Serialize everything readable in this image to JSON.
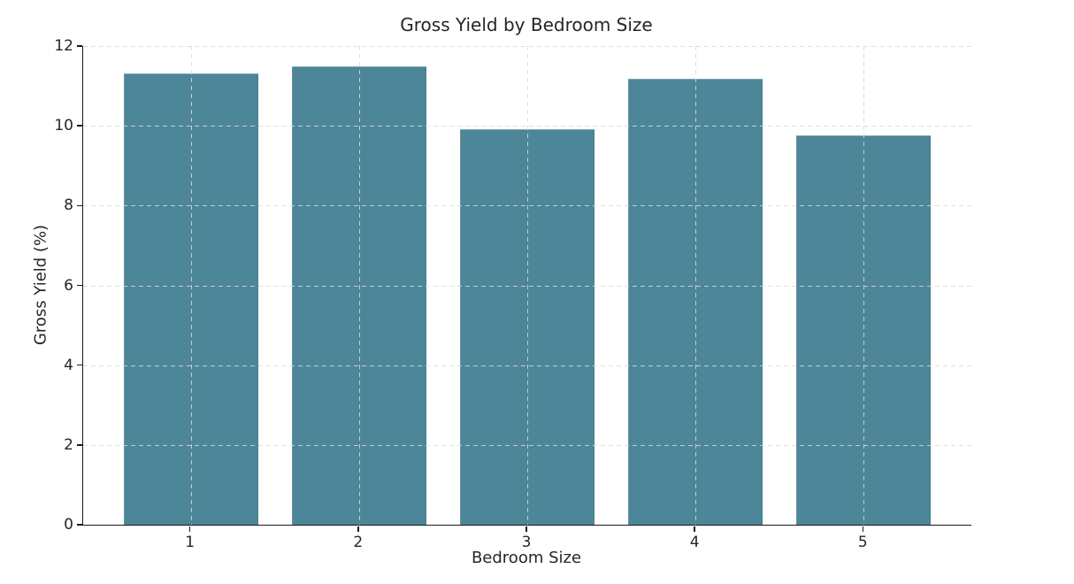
{
  "chart_data": {
    "type": "bar",
    "title": "Gross Yield by Bedroom Size",
    "xlabel": "Bedroom Size",
    "ylabel": "Gross Yield (%)",
    "categories": [
      "1",
      "2",
      "3",
      "4",
      "5"
    ],
    "values": [
      11.32,
      11.5,
      9.92,
      11.18,
      9.75
    ],
    "x_positions": [
      1,
      2,
      3,
      4,
      5
    ],
    "xlim": [
      0.36,
      5.64
    ],
    "ylim": [
      0,
      12
    ],
    "yticks": [
      0,
      2,
      4,
      6,
      8,
      10,
      12
    ],
    "bar_width": 0.8,
    "bar_color": "#4d8698",
    "grid": true,
    "grid_color": "#d9d9d9",
    "grid_style": "dashed",
    "grid_position": "above-bars",
    "legend": "none",
    "background_color": "#ffffff",
    "text_color": "#262626",
    "spine_color": "#1a1a1a",
    "spines": [
      "left",
      "bottom"
    ]
  }
}
